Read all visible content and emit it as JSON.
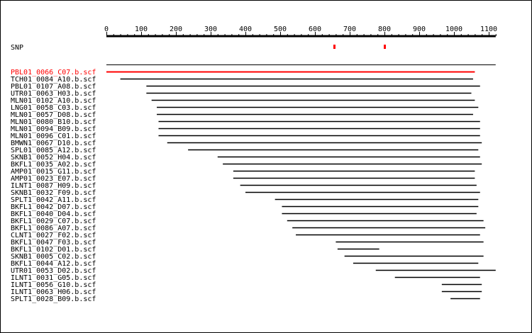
{
  "colors": {
    "background": "#ffffff",
    "axis": "#000000",
    "reference": "#ff0000",
    "read": "#000000",
    "snp": "#ff0000"
  },
  "axis": {
    "min": 0,
    "max": 1120,
    "ticks": [
      0,
      100,
      200,
      300,
      400,
      500,
      600,
      700,
      800,
      900,
      1000,
      1100
    ],
    "minor_step": 20
  },
  "snp_track": {
    "label": "SNP",
    "positions": [
      655,
      800
    ]
  },
  "reference_line": {
    "start": 0,
    "end": 1120
  },
  "reads": [
    {
      "name": "PBL01_0066_C07.b.scf",
      "start": 0,
      "end": 1060,
      "highlight": true
    },
    {
      "name": "TCH01_0084_A10.b.scf",
      "start": 40,
      "end": 1055,
      "highlight": false
    },
    {
      "name": "PBL01_0107_A08.b.scf",
      "start": 115,
      "end": 1075,
      "highlight": false
    },
    {
      "name": "UTR01_0063_H03.b.scf",
      "start": 115,
      "end": 1050,
      "highlight": false
    },
    {
      "name": "MLN01_0102_A10.b.scf",
      "start": 130,
      "end": 1060,
      "highlight": false
    },
    {
      "name": "LNG01_0058_C03.b.scf",
      "start": 145,
      "end": 1070,
      "highlight": false
    },
    {
      "name": "MLN01_0057_D08.b.scf",
      "start": 145,
      "end": 1055,
      "highlight": false
    },
    {
      "name": "MLN01_0080_B10.b.scf",
      "start": 150,
      "end": 1075,
      "highlight": false
    },
    {
      "name": "MLN01_0094_B09.b.scf",
      "start": 150,
      "end": 1075,
      "highlight": false
    },
    {
      "name": "MLN01_0096_C01.b.scf",
      "start": 150,
      "end": 1075,
      "highlight": false
    },
    {
      "name": "BMWN1_0067_D10.b.scf",
      "start": 175,
      "end": 1080,
      "highlight": false
    },
    {
      "name": "SPL01_0085_A12.b.scf",
      "start": 235,
      "end": 1070,
      "highlight": false
    },
    {
      "name": "SKNB1_0052_H04.b.scf",
      "start": 320,
      "end": 1075,
      "highlight": false
    },
    {
      "name": "BKFL1_0035_A02.b.scf",
      "start": 335,
      "end": 1080,
      "highlight": false
    },
    {
      "name": "AMP01_0015_G11.b.scf",
      "start": 365,
      "end": 1060,
      "highlight": false
    },
    {
      "name": "AMP01_0023_E07.b.scf",
      "start": 365,
      "end": 1060,
      "highlight": false
    },
    {
      "name": "ILNT1_0087_H09.b.scf",
      "start": 385,
      "end": 1065,
      "highlight": false
    },
    {
      "name": "SKNB1_0032_F09.b.scf",
      "start": 400,
      "end": 1075,
      "highlight": false
    },
    {
      "name": "SPLT1_0042_A11.b.scf",
      "start": 485,
      "end": 1070,
      "highlight": false
    },
    {
      "name": "BKFL1_0042_D07.b.scf",
      "start": 505,
      "end": 1070,
      "highlight": false
    },
    {
      "name": "BKFL1_0040_D04.b.scf",
      "start": 505,
      "end": 1065,
      "highlight": false
    },
    {
      "name": "BKFL1_0029_C07.b.scf",
      "start": 520,
      "end": 1085,
      "highlight": false
    },
    {
      "name": "BKFL1_0086_A07.b.scf",
      "start": 535,
      "end": 1090,
      "highlight": false
    },
    {
      "name": "CLNT1_0027_F02.b.scf",
      "start": 545,
      "end": 1075,
      "highlight": false
    },
    {
      "name": "BKFL1_0047_F03.b.scf",
      "start": 660,
      "end": 1085,
      "highlight": false
    },
    {
      "name": "BKFL1_0102_D01.b.scf",
      "start": 665,
      "end": 785,
      "highlight": false
    },
    {
      "name": "SKNB1_0005_C02.b.scf",
      "start": 685,
      "end": 1085,
      "highlight": false
    },
    {
      "name": "BKFL1_0044_A12.b.scf",
      "start": 710,
      "end": 1070,
      "highlight": false
    },
    {
      "name": "UTR01_0053_D02.b.scf",
      "start": 775,
      "end": 1120,
      "highlight": false
    },
    {
      "name": "ILNT1_0031_G05.b.scf",
      "start": 830,
      "end": 1075,
      "highlight": false
    },
    {
      "name": "ILNT1_0056_G10.b.scf",
      "start": 965,
      "end": 1080,
      "highlight": false
    },
    {
      "name": "ILNT1_0063_H06.b.scf",
      "start": 965,
      "end": 1080,
      "highlight": false
    },
    {
      "name": "SPLT1_0028_B09.b.scf",
      "start": 990,
      "end": 1075,
      "highlight": false
    }
  ]
}
